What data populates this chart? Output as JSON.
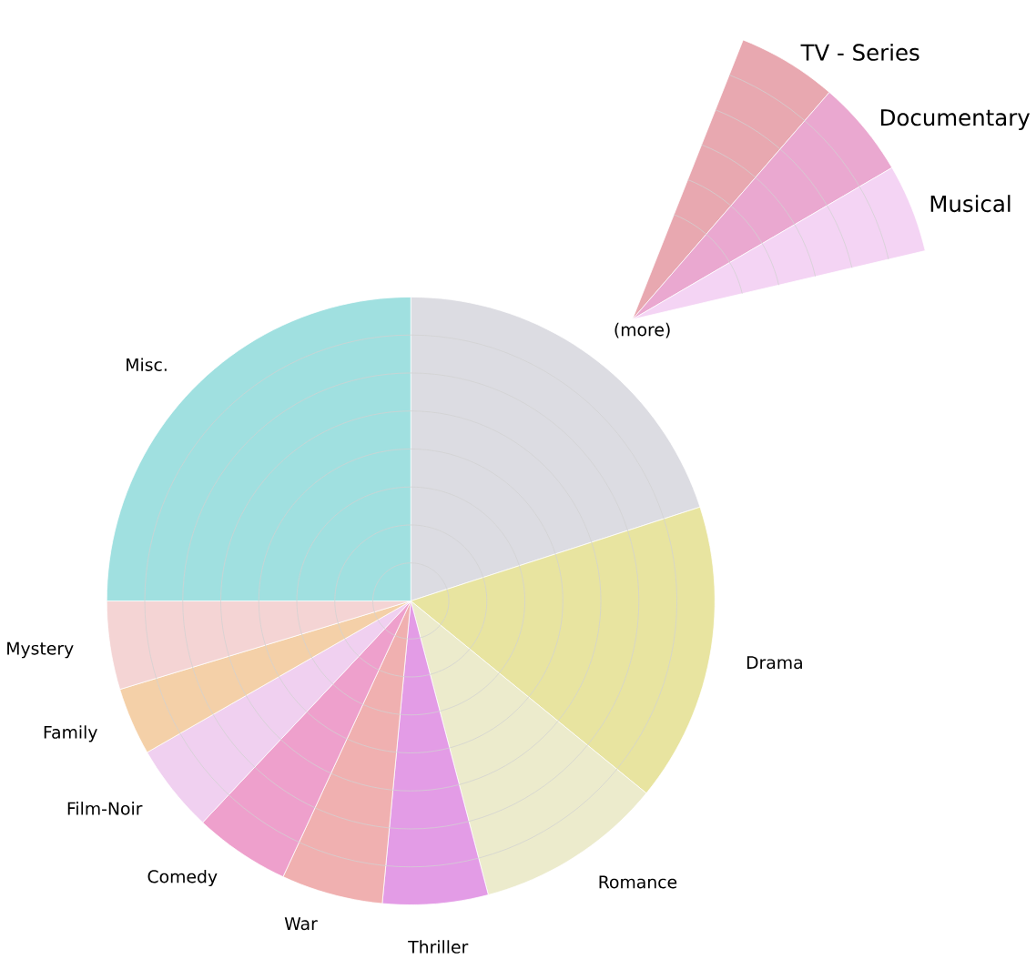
{
  "chart_data": [
    {
      "type": "pie",
      "categories": [
        "(more)",
        "Drama",
        "Romance",
        "Thriller",
        "War",
        "Comedy",
        "Film-Noir",
        "Family",
        "Mystery",
        "Misc."
      ],
      "values": [
        20,
        15.9,
        10,
        5.6,
        5.4,
        5.1,
        4.7,
        3.6,
        4.7,
        25
      ],
      "colors": [
        "#dcdce2",
        "#e8e4a0",
        "#ecebcc",
        "#e39ce6",
        "#f0b0b0",
        "#eea0cc",
        "#f0d0f0",
        "#f4d0a8",
        "#f4d4d4",
        "#a0e0e0"
      ],
      "grid": true
    },
    {
      "type": "pie",
      "categories": [
        "TV - Series",
        "Documentary",
        "Musical"
      ],
      "values": [
        35,
        34,
        31
      ],
      "colors": [
        "#e8a8b0",
        "#eaa8d0",
        "#f4d4f4"
      ],
      "grid": true
    }
  ]
}
